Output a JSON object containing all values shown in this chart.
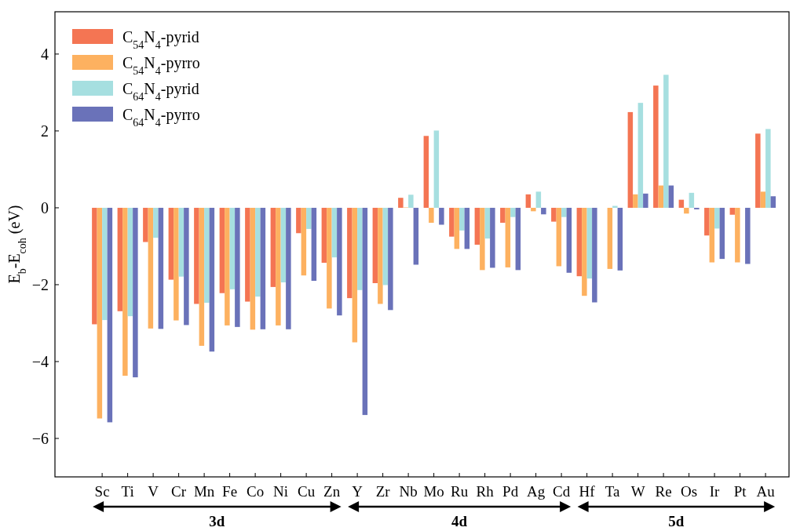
{
  "chart_data": {
    "type": "bar",
    "ylabel": "E$_{b}$-E$_{coh}$ (eV)",
    "categories": [
      "Sc",
      "Ti",
      "V",
      "Cr",
      "Mn",
      "Fe",
      "Co",
      "Ni",
      "Cu",
      "Zn",
      "Y",
      "Zr",
      "Nb",
      "Mo",
      "Ru",
      "Rh",
      "Pd",
      "Ag",
      "Cd",
      "Hf",
      "Ta",
      "W",
      "Re",
      "Os",
      "Ir",
      "Pt",
      "Au"
    ],
    "series": [
      {
        "name": "C$_{54}$N$_{4}$-pyrid",
        "color": "#f47553",
        "values": [
          -3.03,
          -2.69,
          -0.89,
          -1.87,
          -2.5,
          -2.22,
          -2.44,
          -2.06,
          -0.66,
          -1.43,
          -2.35,
          -1.96,
          0.26,
          1.87,
          -0.75,
          -0.96,
          -0.39,
          0.35,
          -0.36,
          -1.78,
          0,
          2.49,
          3.18,
          0.21,
          -0.72,
          -0.18,
          1.93
        ]
      },
      {
        "name": "C$_{54}$N$_{4}$-pyrro",
        "color": "#fdb160",
        "values": [
          -5.48,
          -4.37,
          -3.14,
          -2.93,
          -3.59,
          -3.06,
          -3.17,
          -3.06,
          -1.76,
          -2.62,
          -3.5,
          -2.5,
          0.01,
          -0.39,
          -1.07,
          -1.62,
          -1.55,
          -0.09,
          -1.52,
          -2.29,
          -1.59,
          0.35,
          0.58,
          -0.15,
          -1.42,
          -1.42,
          0.42
        ]
      },
      {
        "name": "C$_{64}$N$_{4}$-pyrid",
        "color": "#a6dfe0",
        "values": [
          -2.92,
          -2.82,
          -0.78,
          -1.79,
          -2.47,
          -2.12,
          -2.31,
          -1.94,
          -0.55,
          -1.29,
          -2.14,
          -2.01,
          0.34,
          2.01,
          -0.59,
          -0.8,
          -0.24,
          0.42,
          -0.24,
          -1.84,
          0.05,
          2.73,
          3.46,
          0.39,
          -0.54,
          0,
          2.05
        ]
      },
      {
        "name": "C$_{64}$N$_{4}$-pyrro",
        "color": "#6a72b9",
        "values": [
          -5.58,
          -4.41,
          -3.15,
          -3.05,
          -3.74,
          -3.1,
          -3.16,
          -3.16,
          -1.9,
          -2.8,
          -5.39,
          -2.66,
          -1.48,
          -0.44,
          -1.07,
          -1.56,
          -1.62,
          -0.17,
          -1.69,
          -2.46,
          -1.63,
          0.37,
          0.58,
          -0.04,
          -1.33,
          -1.46,
          0.3
        ]
      }
    ],
    "ylim": [
      -7,
      5.1
    ],
    "yticks": [
      {
        "value": -6,
        "label": "−6"
      },
      {
        "value": -4,
        "label": "−4"
      },
      {
        "value": -2,
        "label": "−2"
      },
      0,
      2,
      4
    ],
    "legend": "top left",
    "grid": false,
    "annotations": [
      "3d",
      "4d",
      "5d"
    ]
  }
}
